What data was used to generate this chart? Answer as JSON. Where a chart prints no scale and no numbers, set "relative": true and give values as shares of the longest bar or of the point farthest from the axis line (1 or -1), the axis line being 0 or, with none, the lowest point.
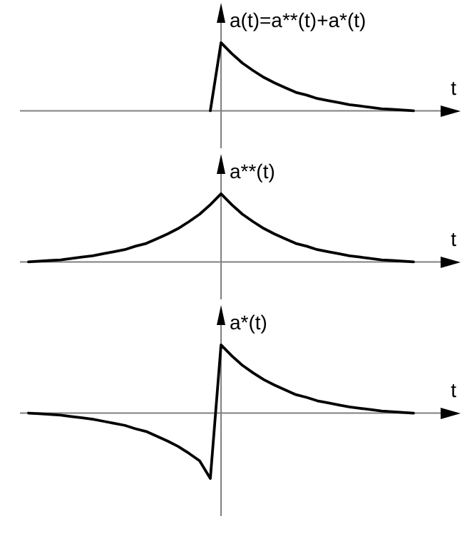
{
  "chart_data": [
    {
      "type": "line",
      "relative": true,
      "xlabel": "t",
      "ylabel": "a(t)=a**(t)+a*(t)",
      "tick_labels": false,
      "grid": false,
      "categories": [
        null,
        null,
        null,
        null,
        null,
        null,
        null,
        null,
        null,
        null,
        null,
        null,
        null,
        null,
        null,
        null,
        null,
        null,
        null,
        null,
        null,
        null,
        null,
        null,
        null,
        null,
        null,
        null,
        null,
        null,
        null,
        null,
        null,
        null,
        null,
        null,
        null
      ],
      "series": [
        {
          "color": "#000000",
          "values": [
            null,
            null,
            null,
            null,
            null,
            null,
            null,
            null,
            null,
            null,
            null,
            null,
            null,
            null,
            null,
            null,
            null,
            0,
            1,
            0.84,
            0.7,
            0.59,
            0.49,
            0.41,
            0.34,
            0.27,
            0.23,
            0.18,
            0.15,
            0.12,
            0.09,
            0.07,
            0.05,
            0.03,
            0.02,
            0.01,
            0
          ]
        }
      ]
    },
    {
      "type": "line",
      "relative": true,
      "xlabel": "t",
      "ylabel": "a**(t)",
      "tick_labels": false,
      "grid": false,
      "categories": [
        null,
        null,
        null,
        null,
        null,
        null,
        null,
        null,
        null,
        null,
        null,
        null,
        null,
        null,
        null,
        null,
        null,
        null,
        null,
        null,
        null,
        null,
        null,
        null,
        null,
        null,
        null,
        null,
        null,
        null,
        null,
        null,
        null,
        null,
        null,
        null,
        null
      ],
      "series": [
        {
          "color": "#000000",
          "values": [
            0,
            0.01,
            0.02,
            0.03,
            0.05,
            0.07,
            0.09,
            0.12,
            0.15,
            0.18,
            0.23,
            0.27,
            0.34,
            0.41,
            0.49,
            0.59,
            0.7,
            0.84,
            1,
            0.84,
            0.7,
            0.59,
            0.49,
            0.41,
            0.34,
            0.27,
            0.23,
            0.18,
            0.15,
            0.12,
            0.09,
            0.07,
            0.05,
            0.03,
            0.02,
            0.01,
            0
          ]
        }
      ]
    },
    {
      "type": "line",
      "relative": true,
      "xlabel": "t",
      "ylabel": "a*(t)",
      "tick_labels": false,
      "grid": false,
      "categories": [
        null,
        null,
        null,
        null,
        null,
        null,
        null,
        null,
        null,
        null,
        null,
        null,
        null,
        null,
        null,
        null,
        null,
        null,
        null,
        null,
        null,
        null,
        null,
        null,
        null,
        null,
        null,
        null,
        null,
        null,
        null,
        null,
        null,
        null,
        null,
        null,
        null
      ],
      "series": [
        {
          "color": "#000000",
          "values": [
            0,
            -0.01,
            -0.02,
            -0.03,
            -0.05,
            -0.07,
            -0.09,
            -0.12,
            -0.15,
            -0.18,
            -0.23,
            -0.27,
            -0.34,
            -0.41,
            -0.49,
            -0.59,
            -0.7,
            -0.96,
            1,
            0.84,
            0.7,
            0.59,
            0.49,
            0.41,
            0.34,
            0.27,
            0.23,
            0.18,
            0.15,
            0.12,
            0.09,
            0.07,
            0.05,
            0.03,
            0.02,
            0.01,
            0
          ]
        }
      ]
    }
  ]
}
